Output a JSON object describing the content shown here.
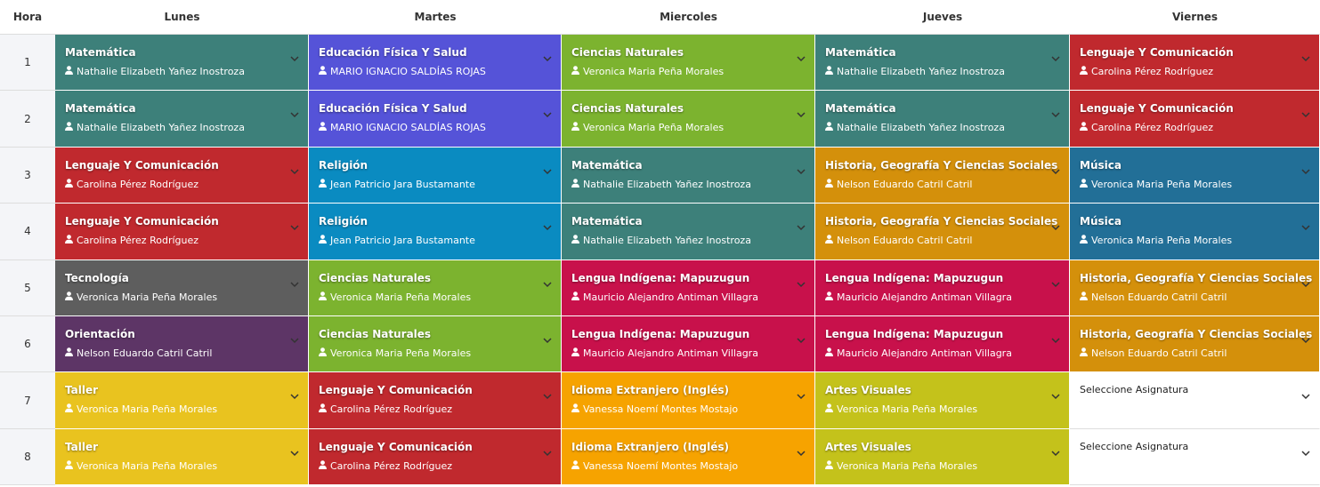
{
  "header": {
    "columns": [
      "Hora",
      "Lunes",
      "Martes",
      "Miercoles",
      "Jueves",
      "Viernes"
    ]
  },
  "rows": [
    {
      "hour": 1,
      "cells": [
        {
          "subject": "Matemática",
          "teacher": "Nathalie Elizabeth Yañez Inostroza",
          "color": "#3d807a"
        },
        {
          "subject": "Educación Física Y Salud",
          "teacher": "MARIO IGNACIO SALDÍAS ROJAS",
          "color": "#5553d8"
        },
        {
          "subject": "Ciencias Naturales",
          "teacher": "Veronica Maria Peña Morales",
          "color": "#7cb32f"
        },
        {
          "subject": "Matemática",
          "teacher": "Nathalie Elizabeth Yañez Inostroza",
          "color": "#3d807a"
        },
        {
          "subject": "Lenguaje Y Comunicación",
          "teacher": "Carolina Pérez Rodríguez",
          "color": "#c0292e"
        }
      ]
    },
    {
      "hour": 2,
      "cells": [
        {
          "subject": "Matemática",
          "teacher": "Nathalie Elizabeth Yañez Inostroza",
          "color": "#3d807a"
        },
        {
          "subject": "Educación Física Y Salud",
          "teacher": "MARIO IGNACIO SALDÍAS ROJAS",
          "color": "#5553d8"
        },
        {
          "subject": "Ciencias Naturales",
          "teacher": "Veronica Maria Peña Morales",
          "color": "#7cb32f"
        },
        {
          "subject": "Matemática",
          "teacher": "Nathalie Elizabeth Yañez Inostroza",
          "color": "#3d807a"
        },
        {
          "subject": "Lenguaje Y Comunicación",
          "teacher": "Carolina Pérez Rodríguez",
          "color": "#c0292e"
        }
      ]
    },
    {
      "hour": 3,
      "cells": [
        {
          "subject": "Lenguaje Y Comunicación",
          "teacher": "Carolina Pérez Rodríguez",
          "color": "#c0292e"
        },
        {
          "subject": "Religión",
          "teacher": "Jean Patricio Jara Bustamante",
          "color": "#0a8bc1"
        },
        {
          "subject": "Matemática",
          "teacher": "Nathalie Elizabeth Yañez Inostroza",
          "color": "#3d807a"
        },
        {
          "subject": "Historia, Geografía Y Ciencias Sociales",
          "teacher": "Nelson Eduardo Catril Catril",
          "color": "#d4900b"
        },
        {
          "subject": "Música",
          "teacher": "Veronica Maria Peña Morales",
          "color": "#226f97"
        }
      ]
    },
    {
      "hour": 4,
      "cells": [
        {
          "subject": "Lenguaje Y Comunicación",
          "teacher": "Carolina Pérez Rodríguez",
          "color": "#c0292e"
        },
        {
          "subject": "Religión",
          "teacher": "Jean Patricio Jara Bustamante",
          "color": "#0a8bc1"
        },
        {
          "subject": "Matemática",
          "teacher": "Nathalie Elizabeth Yañez Inostroza",
          "color": "#3d807a"
        },
        {
          "subject": "Historia, Geografía Y Ciencias Sociales",
          "teacher": "Nelson Eduardo Catril Catril",
          "color": "#d4900b"
        },
        {
          "subject": "Música",
          "teacher": "Veronica Maria Peña Morales",
          "color": "#226f97"
        }
      ]
    },
    {
      "hour": 5,
      "cells": [
        {
          "subject": "Tecnología",
          "teacher": "Veronica Maria Peña Morales",
          "color": "#5e5e5e"
        },
        {
          "subject": "Ciencias Naturales",
          "teacher": "Veronica Maria Peña Morales",
          "color": "#7cb32f"
        },
        {
          "subject": "Lengua Indígena: Mapuzugun",
          "teacher": "Mauricio Alejandro Antiman Villagra",
          "color": "#c8114b"
        },
        {
          "subject": "Lengua Indígena: Mapuzugun",
          "teacher": "Mauricio Alejandro Antiman Villagra",
          "color": "#c8114b"
        },
        {
          "subject": "Historia, Geografía Y Ciencias Sociales",
          "teacher": "Nelson Eduardo Catril Catril",
          "color": "#d4900b"
        }
      ]
    },
    {
      "hour": 6,
      "cells": [
        {
          "subject": "Orientación",
          "teacher": "Nelson Eduardo Catril Catril",
          "color": "#5d3566"
        },
        {
          "subject": "Ciencias Naturales",
          "teacher": "Veronica Maria Peña Morales",
          "color": "#7cb32f"
        },
        {
          "subject": "Lengua Indígena: Mapuzugun",
          "teacher": "Mauricio Alejandro Antiman Villagra",
          "color": "#c8114b"
        },
        {
          "subject": "Lengua Indígena: Mapuzugun",
          "teacher": "Mauricio Alejandro Antiman Villagra",
          "color": "#c8114b"
        },
        {
          "subject": "Historia, Geografía Y Ciencias Sociales",
          "teacher": "Nelson Eduardo Catril Catril",
          "color": "#d4900b"
        }
      ]
    },
    {
      "hour": 7,
      "cells": [
        {
          "subject": "Taller",
          "teacher": "Veronica Maria Peña Morales",
          "color": "#e9c31f"
        },
        {
          "subject": "Lenguaje Y Comunicación",
          "teacher": "Carolina Pérez Rodríguez",
          "color": "#c0292e"
        },
        {
          "subject": "Idioma Extranjero (Inglés)",
          "teacher": "Vanessa Noemí Montes Mostajo",
          "color": "#f6a300"
        },
        {
          "subject": "Artes Visuales",
          "teacher": "Veronica Maria Peña Morales",
          "color": "#c4c21b"
        },
        {
          "placeholder": "Seleccione Asignatura"
        }
      ]
    },
    {
      "hour": 8,
      "cells": [
        {
          "subject": "Taller",
          "teacher": "Veronica Maria Peña Morales",
          "color": "#e9c31f"
        },
        {
          "subject": "Lenguaje Y Comunicación",
          "teacher": "Carolina Pérez Rodríguez",
          "color": "#c0292e"
        },
        {
          "subject": "Idioma Extranjero (Inglés)",
          "teacher": "Vanessa Noemí Montes Mostajo",
          "color": "#f6a300"
        },
        {
          "subject": "Artes Visuales",
          "teacher": "Veronica Maria Peña Morales",
          "color": "#c4c21b"
        },
        {
          "placeholder": "Seleccione Asignatura"
        }
      ]
    }
  ]
}
